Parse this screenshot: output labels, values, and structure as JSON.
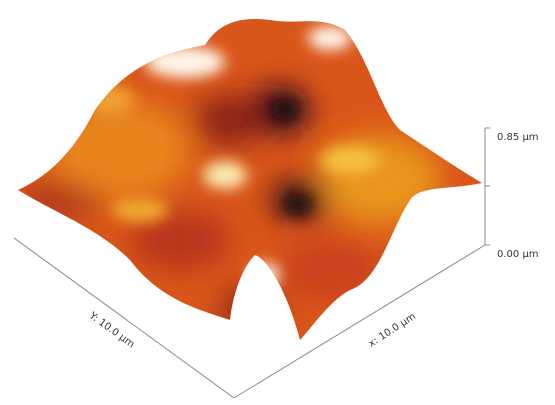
{
  "chart_data": {
    "type": "surface",
    "x_label": "x: 10.0 µm",
    "y_label": "Y: 10.0 µm",
    "zlim": [
      0,
      0.85
    ],
    "zticks": [
      {
        "value": 0,
        "label": "0.00 µm"
      },
      {
        "value": 0.85,
        "label": "0.85 µm"
      }
    ]
  }
}
